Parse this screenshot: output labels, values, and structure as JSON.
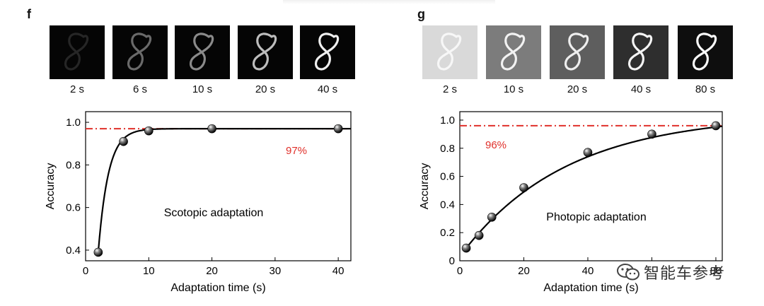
{
  "panels": {
    "f": {
      "letter": "f",
      "thumbnails": [
        {
          "label": "2 s",
          "bg": "#050505",
          "stroke": "#262626"
        },
        {
          "label": "6 s",
          "bg": "#050505",
          "stroke": "#6a6a6a"
        },
        {
          "label": "10 s",
          "bg": "#050505",
          "stroke": "#8a8a8a"
        },
        {
          "label": "20 s",
          "bg": "#050505",
          "stroke": "#bdbdbd"
        },
        {
          "label": "40 s",
          "bg": "#050505",
          "stroke": "#efefef"
        }
      ]
    },
    "g": {
      "letter": "g",
      "thumbnails": [
        {
          "label": "2 s",
          "bg": "#d9d9d9",
          "stroke": "#f7f7f7"
        },
        {
          "label": "10 s",
          "bg": "#7c7c7c",
          "stroke": "#f2f2f2"
        },
        {
          "label": "20 s",
          "bg": "#5e5e5e",
          "stroke": "#eeeeee"
        },
        {
          "label": "40 s",
          "bg": "#2e2e2e",
          "stroke": "#f4f4f4"
        },
        {
          "label": "80 s",
          "bg": "#0e0e0e",
          "stroke": "#fafafa"
        }
      ]
    }
  },
  "watermark": {
    "text": "智能车参考",
    "icon": "wechat-icon"
  },
  "colors": {
    "reference_line": "#e0302a",
    "curve": "#000000",
    "axis": "#000000"
  },
  "chart_data": [
    {
      "type": "scatter",
      "title": "",
      "xlabel": "Adaptation time (s)",
      "ylabel": "Accuracy",
      "xlim": [
        0,
        42
      ],
      "ylim": [
        0.35,
        1.05
      ],
      "xticks": [
        0,
        10,
        20,
        30,
        40
      ],
      "yticks": [
        0.4,
        0.6,
        0.8,
        1.0
      ],
      "ytick_labels": [
        "0.4",
        "0.6",
        "0.8",
        "1.0"
      ],
      "grid": false,
      "annotation": "Scotopic adaptation",
      "series": [
        {
          "x": [
            2,
            6,
            10,
            20,
            40
          ],
          "y": [
            0.39,
            0.91,
            0.96,
            0.97,
            0.97
          ]
        }
      ],
      "fit_curve": {
        "x0": 2,
        "y0": 0.39,
        "plateau": 0.97,
        "tau": 1.6
      },
      "reference_line": {
        "y": 0.97,
        "label": "97%"
      }
    },
    {
      "type": "scatter",
      "title": "",
      "xlabel": "Adaptation time (s)",
      "ylabel": "Accuracy",
      "xlim": [
        0,
        82
      ],
      "ylim": [
        0,
        1.06
      ],
      "xticks": [
        0,
        20,
        40,
        60,
        80
      ],
      "yticks": [
        0,
        0.2,
        0.4,
        0.6,
        0.8,
        1.0
      ],
      "ytick_labels": [
        "0",
        "0.2",
        "0.4",
        "0.6",
        "0.8",
        "1.0"
      ],
      "xtick_labels": [
        "0",
        "20",
        "40",
        "",
        "80"
      ],
      "grid": false,
      "annotation": "Photopic adaptation",
      "series": [
        {
          "x": [
            2,
            6,
            10,
            20,
            40,
            60,
            80
          ],
          "y": [
            0.09,
            0.18,
            0.31,
            0.52,
            0.77,
            0.9,
            0.96
          ]
        }
      ],
      "fit_curve": {
        "x0": 2,
        "y0": 0.09,
        "plateau": 1.04,
        "tau": 33
      },
      "reference_line": {
        "y": 0.96,
        "label": "96%"
      }
    }
  ]
}
